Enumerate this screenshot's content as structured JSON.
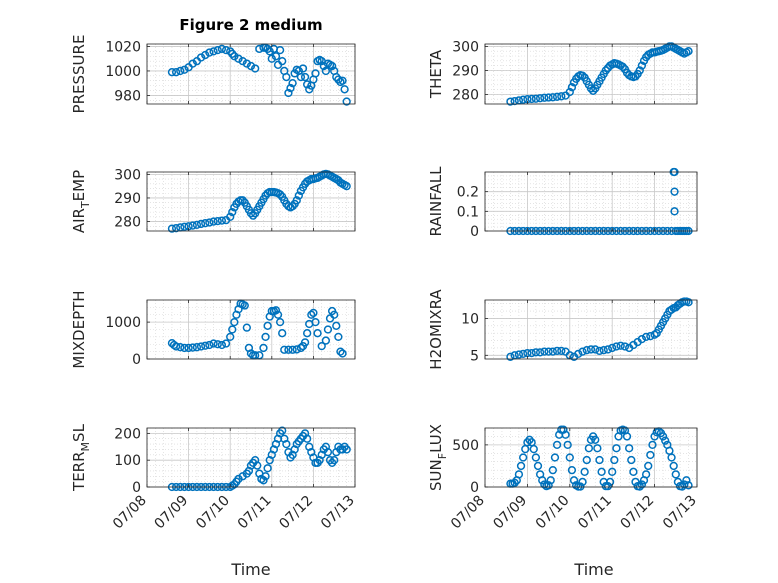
{
  "figure": {
    "title": "Figure 2 medium",
    "marker_color": "#0072BD",
    "time_ticks": [
      "07/08",
      "07/09",
      "07/10",
      "07/11",
      "07/12",
      "07/13"
    ],
    "xlabel": "Time"
  },
  "chart_data": [
    {
      "type": "scatter",
      "ylabel": "PRESSURE",
      "ylabel_sub": null,
      "yticks": [
        980,
        1000,
        1020
      ],
      "ylim": [
        973,
        1022
      ],
      "xlim": [
        0,
        5
      ],
      "x": [
        0.6,
        0.7,
        0.8,
        0.9,
        1.0,
        1.1,
        1.2,
        1.3,
        1.4,
        1.5,
        1.6,
        1.7,
        1.8,
        1.9,
        2.0,
        2.05,
        2.1,
        2.2,
        2.3,
        2.4,
        2.5,
        2.6,
        2.7,
        2.8,
        2.85,
        2.9,
        2.95,
        3.0,
        3.05,
        3.1,
        3.15,
        3.2,
        3.25,
        3.3,
        3.35,
        3.4,
        3.45,
        3.5,
        3.55,
        3.6,
        3.65,
        3.7,
        3.75,
        3.8,
        3.85,
        3.9,
        3.95,
        4.0,
        4.05,
        4.1,
        4.15,
        4.2,
        4.25,
        4.3,
        4.35,
        4.4,
        4.45,
        4.5,
        4.55,
        4.6,
        4.65,
        4.7,
        4.75,
        4.8
      ],
      "y": [
        999,
        999,
        1000,
        1001,
        1003,
        1006,
        1008,
        1011,
        1013,
        1015,
        1016,
        1017,
        1018,
        1017,
        1016,
        1014,
        1012,
        1010,
        1008,
        1006,
        1004,
        1002,
        1018,
        1019,
        1019,
        1018,
        1016,
        1010,
        1018,
        1012,
        1005,
        1017,
        1008,
        1000,
        995,
        982,
        986,
        990,
        998,
        1001,
        1000,
        995,
        1002,
        995,
        989,
        985,
        988,
        993,
        998,
        1008,
        1009,
        1008,
        1004,
        1000,
        1006,
        1005,
        1004,
        1000,
        995,
        993,
        991,
        992,
        985,
        975
      ]
    },
    {
      "type": "scatter",
      "ylabel": "THETA",
      "ylabel_sub": null,
      "yticks": [
        280,
        290,
        300
      ],
      "ylim": [
        276,
        301
      ],
      "xlim": [
        0,
        5
      ],
      "x": [
        0.6,
        0.7,
        0.8,
        0.9,
        1.0,
        1.1,
        1.2,
        1.3,
        1.4,
        1.5,
        1.6,
        1.7,
        1.8,
        1.9,
        2.0,
        2.05,
        2.1,
        2.15,
        2.2,
        2.25,
        2.3,
        2.35,
        2.4,
        2.45,
        2.5,
        2.55,
        2.6,
        2.65,
        2.7,
        2.75,
        2.8,
        2.85,
        2.9,
        2.95,
        3.0,
        3.05,
        3.1,
        3.15,
        3.2,
        3.25,
        3.3,
        3.35,
        3.4,
        3.45,
        3.5,
        3.55,
        3.6,
        3.65,
        3.7,
        3.75,
        3.8,
        3.85,
        3.9,
        3.95,
        4.0,
        4.05,
        4.1,
        4.15,
        4.2,
        4.25,
        4.3,
        4.35,
        4.4,
        4.45,
        4.5,
        4.55,
        4.6,
        4.65,
        4.7,
        4.75,
        4.8
      ],
      "y": [
        277,
        277.2,
        277.5,
        277.8,
        278,
        278.1,
        278.2,
        278.4,
        278.6,
        278.7,
        278.8,
        279,
        279.2,
        279.5,
        281,
        283,
        285,
        286.5,
        287.5,
        288,
        287.8,
        287,
        285.5,
        284,
        282.5,
        281.5,
        282.5,
        284,
        285.5,
        287,
        288.5,
        290,
        291,
        292,
        292.5,
        293,
        292.8,
        292.5,
        292,
        291.5,
        290.5,
        289,
        288,
        287.5,
        287.2,
        287.5,
        288.5,
        290,
        292,
        294,
        295.5,
        296.5,
        297,
        297.5,
        297.5,
        297.8,
        298,
        298.2,
        298.5,
        299,
        299.5,
        300,
        300,
        299.5,
        299,
        298.5,
        298,
        297.5,
        297,
        297.5,
        298
      ]
    },
    {
      "type": "scatter",
      "ylabel": "AIR",
      "ylabel_sub": "T",
      "ylabel_tail": "EMP",
      "yticks": [
        280,
        290,
        300
      ],
      "ylim": [
        276,
        301
      ],
      "xlim": [
        0,
        5
      ],
      "x": [
        0.6,
        0.7,
        0.8,
        0.9,
        1.0,
        1.1,
        1.2,
        1.3,
        1.4,
        1.5,
        1.6,
        1.7,
        1.8,
        1.9,
        2.0,
        2.05,
        2.1,
        2.15,
        2.2,
        2.25,
        2.3,
        2.35,
        2.4,
        2.45,
        2.5,
        2.55,
        2.6,
        2.65,
        2.7,
        2.75,
        2.8,
        2.85,
        2.9,
        2.95,
        3.0,
        3.05,
        3.1,
        3.15,
        3.2,
        3.25,
        3.3,
        3.35,
        3.4,
        3.45,
        3.5,
        3.55,
        3.6,
        3.65,
        3.7,
        3.75,
        3.8,
        3.85,
        3.9,
        3.95,
        4.0,
        4.05,
        4.1,
        4.15,
        4.2,
        4.25,
        4.3,
        4.35,
        4.4,
        4.45,
        4.5,
        4.55,
        4.6,
        4.65,
        4.7,
        4.75,
        4.8
      ],
      "y": [
        277,
        277.2,
        277.5,
        277.8,
        278,
        278.3,
        278.6,
        279,
        279.3,
        279.6,
        280,
        280.2,
        280.4,
        280.6,
        282,
        284,
        286,
        287.5,
        288.5,
        289,
        289,
        288,
        286.5,
        285,
        283.5,
        282.5,
        283.5,
        285,
        286.5,
        288,
        289.5,
        291,
        292,
        292.5,
        292.5,
        292.5,
        292.3,
        292,
        291.5,
        290.5,
        289,
        287.5,
        286.5,
        286,
        286.5,
        287.5,
        289,
        291,
        293,
        294.5,
        296,
        297,
        297.5,
        298,
        298,
        298.3,
        298.5,
        299,
        299.5,
        300,
        300.2,
        300,
        299.5,
        299,
        298.5,
        298,
        297.5,
        296.5,
        296,
        295.5,
        295
      ]
    },
    {
      "type": "scatter",
      "ylabel": "RAINFALL",
      "ylabel_sub": null,
      "yticks": [
        0,
        0.1,
        0.2
      ],
      "ytick_labels": [
        "0",
        "0.1",
        "0.2"
      ],
      "ylim": [
        0,
        0.3
      ],
      "xlim": [
        0,
        5
      ],
      "x": [
        0.6,
        0.7,
        0.8,
        0.9,
        1.0,
        1.1,
        1.2,
        1.3,
        1.4,
        1.5,
        1.6,
        1.7,
        1.8,
        1.9,
        2.0,
        2.1,
        2.2,
        2.3,
        2.4,
        2.5,
        2.6,
        2.7,
        2.8,
        2.9,
        3.0,
        3.1,
        3.2,
        3.3,
        3.4,
        3.5,
        3.6,
        3.7,
        3.8,
        3.9,
        4.0,
        4.1,
        4.2,
        4.3,
        4.4,
        4.45,
        4.47,
        4.47,
        4.47,
        4.5,
        4.55,
        4.6,
        4.65,
        4.7,
        4.75,
        4.8
      ],
      "y": [
        0,
        0,
        0,
        0,
        0,
        0,
        0,
        0,
        0,
        0,
        0,
        0,
        0,
        0,
        0,
        0,
        0,
        0,
        0,
        0,
        0,
        0,
        0,
        0,
        0,
        0,
        0,
        0,
        0,
        0,
        0,
        0,
        0,
        0,
        0,
        0,
        0,
        0,
        0,
        0.3,
        0.3,
        0.2,
        0.1,
        0,
        0,
        0,
        0,
        0,
        0,
        0
      ]
    },
    {
      "type": "scatter",
      "ylabel": "MIXDEPTH",
      "ylabel_sub": null,
      "yticks": [
        0,
        1000
      ],
      "ylim": [
        0,
        1600
      ],
      "xlim": [
        0,
        5
      ],
      "x": [
        0.6,
        0.65,
        0.7,
        0.8,
        0.9,
        1.0,
        1.1,
        1.2,
        1.3,
        1.4,
        1.5,
        1.6,
        1.7,
        1.8,
        1.9,
        2.0,
        2.05,
        2.1,
        2.15,
        2.2,
        2.25,
        2.3,
        2.35,
        2.4,
        2.45,
        2.5,
        2.55,
        2.6,
        2.7,
        2.8,
        2.85,
        2.9,
        2.95,
        3.0,
        3.05,
        3.1,
        3.15,
        3.2,
        3.25,
        3.3,
        3.4,
        3.5,
        3.6,
        3.7,
        3.75,
        3.8,
        3.85,
        3.9,
        3.95,
        4.0,
        4.05,
        4.1,
        4.2,
        4.3,
        4.35,
        4.4,
        4.45,
        4.5,
        4.55,
        4.6,
        4.65,
        4.7
      ],
      "y": [
        430,
        380,
        340,
        320,
        300,
        300,
        310,
        320,
        340,
        360,
        380,
        420,
        400,
        380,
        420,
        600,
        800,
        1000,
        1200,
        1350,
        1500,
        1480,
        1450,
        850,
        300,
        150,
        100,
        100,
        100,
        300,
        600,
        900,
        1150,
        1300,
        1300,
        1320,
        1200,
        1000,
        700,
        250,
        250,
        250,
        260,
        300,
        350,
        450,
        700,
        950,
        1200,
        1250,
        1000,
        700,
        350,
        500,
        800,
        1100,
        1300,
        1200,
        900,
        600,
        200,
        150
      ]
    },
    {
      "type": "scatter",
      "ylabel": "H2OMIXRA",
      "ylabel_sub": null,
      "yticks": [
        5,
        10
      ],
      "ylim": [
        4.5,
        12.5
      ],
      "xlim": [
        0,
        5
      ],
      "x": [
        0.6,
        0.7,
        0.8,
        0.9,
        1.0,
        1.1,
        1.2,
        1.3,
        1.4,
        1.5,
        1.6,
        1.7,
        1.8,
        1.9,
        2.0,
        2.1,
        2.2,
        2.3,
        2.4,
        2.5,
        2.6,
        2.7,
        2.8,
        2.9,
        3.0,
        3.1,
        3.2,
        3.3,
        3.4,
        3.5,
        3.6,
        3.7,
        3.8,
        3.9,
        4.0,
        4.05,
        4.1,
        4.15,
        4.2,
        4.25,
        4.3,
        4.35,
        4.4,
        4.45,
        4.5,
        4.55,
        4.6,
        4.65,
        4.7,
        4.75,
        4.8
      ],
      "y": [
        4.8,
        5.0,
        5.1,
        5.2,
        5.3,
        5.3,
        5.4,
        5.4,
        5.5,
        5.5,
        5.5,
        5.6,
        5.6,
        5.5,
        5.0,
        4.8,
        5.2,
        5.5,
        5.7,
        5.8,
        5.8,
        5.6,
        5.7,
        5.8,
        6.0,
        6.2,
        6.3,
        6.2,
        6.0,
        6.4,
        6.8,
        7.2,
        7.5,
        7.6,
        7.8,
        8.0,
        8.5,
        9.0,
        9.5,
        10.0,
        10.5,
        11.0,
        11.2,
        11.4,
        11.5,
        11.8,
        12.0,
        12.2,
        12.3,
        12.3,
        12.2
      ]
    },
    {
      "type": "scatter",
      "ylabel": "TERR",
      "ylabel_sub": "M",
      "ylabel_tail": "SL",
      "yticks": [
        0,
        100,
        200
      ],
      "ylim": [
        0,
        220
      ],
      "xlim": [
        0,
        5
      ],
      "x": [
        0.6,
        0.7,
        0.8,
        0.9,
        1.0,
        1.1,
        1.2,
        1.3,
        1.4,
        1.5,
        1.6,
        1.7,
        1.8,
        1.9,
        2.0,
        2.05,
        2.1,
        2.15,
        2.2,
        2.3,
        2.4,
        2.45,
        2.5,
        2.55,
        2.6,
        2.65,
        2.7,
        2.75,
        2.8,
        2.85,
        2.9,
        2.95,
        3.0,
        3.05,
        3.1,
        3.15,
        3.2,
        3.25,
        3.3,
        3.35,
        3.4,
        3.45,
        3.5,
        3.55,
        3.6,
        3.65,
        3.7,
        3.75,
        3.8,
        3.85,
        3.9,
        3.95,
        4.0,
        4.05,
        4.1,
        4.15,
        4.2,
        4.25,
        4.3,
        4.35,
        4.4,
        4.45,
        4.5,
        4.55,
        4.6,
        4.65,
        4.7,
        4.75,
        4.8
      ],
      "y": [
        0,
        0,
        0,
        0,
        0,
        0,
        0,
        0,
        0,
        0,
        0,
        0,
        0,
        0,
        0,
        5,
        10,
        20,
        30,
        40,
        50,
        60,
        80,
        90,
        100,
        80,
        50,
        30,
        25,
        40,
        70,
        100,
        120,
        140,
        160,
        180,
        200,
        210,
        180,
        160,
        130,
        110,
        120,
        140,
        160,
        170,
        180,
        190,
        200,
        180,
        150,
        130,
        110,
        90,
        90,
        100,
        120,
        140,
        150,
        130,
        100,
        90,
        100,
        130,
        150,
        140,
        140,
        150,
        140
      ]
    },
    {
      "type": "scatter",
      "ylabel": "SUN",
      "ylabel_sub": "F",
      "ylabel_tail": "LUX",
      "yticks": [
        0,
        500
      ],
      "ylim": [
        0,
        700
      ],
      "xlim": [
        0,
        5
      ],
      "x": [
        0.6,
        0.65,
        0.7,
        0.75,
        0.8,
        0.85,
        0.9,
        0.95,
        1.0,
        1.05,
        1.1,
        1.15,
        1.2,
        1.25,
        1.3,
        1.35,
        1.4,
        1.45,
        1.5,
        1.55,
        1.6,
        1.65,
        1.7,
        1.75,
        1.8,
        1.85,
        1.9,
        1.95,
        2.0,
        2.05,
        2.1,
        2.15,
        2.2,
        2.25,
        2.3,
        2.35,
        2.4,
        2.45,
        2.5,
        2.55,
        2.6,
        2.65,
        2.7,
        2.75,
        2.8,
        2.85,
        2.9,
        2.95,
        3.0,
        3.05,
        3.1,
        3.15,
        3.2,
        3.25,
        3.3,
        3.35,
        3.4,
        3.45,
        3.5,
        3.55,
        3.6,
        3.65,
        3.7,
        3.75,
        3.8,
        3.85,
        3.9,
        3.95,
        4.0,
        4.05,
        4.1,
        4.15,
        4.2,
        4.25,
        4.3,
        4.35,
        4.4,
        4.45,
        4.5,
        4.55,
        4.6,
        4.65,
        4.7,
        4.75,
        4.8
      ],
      "y": [
        40,
        40,
        50,
        80,
        150,
        250,
        350,
        450,
        530,
        560,
        530,
        450,
        350,
        250,
        150,
        80,
        30,
        10,
        20,
        80,
        200,
        350,
        500,
        620,
        680,
        680,
        620,
        500,
        350,
        200,
        80,
        20,
        5,
        5,
        60,
        180,
        320,
        460,
        560,
        600,
        560,
        460,
        320,
        180,
        60,
        10,
        10,
        60,
        180,
        320,
        460,
        600,
        670,
        680,
        670,
        600,
        460,
        320,
        180,
        60,
        10,
        5,
        30,
        80,
        150,
        250,
        380,
        500,
        600,
        650,
        660,
        640,
        600,
        550,
        500,
        430,
        350,
        250,
        150,
        60,
        10,
        5,
        30,
        80,
        20
      ]
    }
  ]
}
